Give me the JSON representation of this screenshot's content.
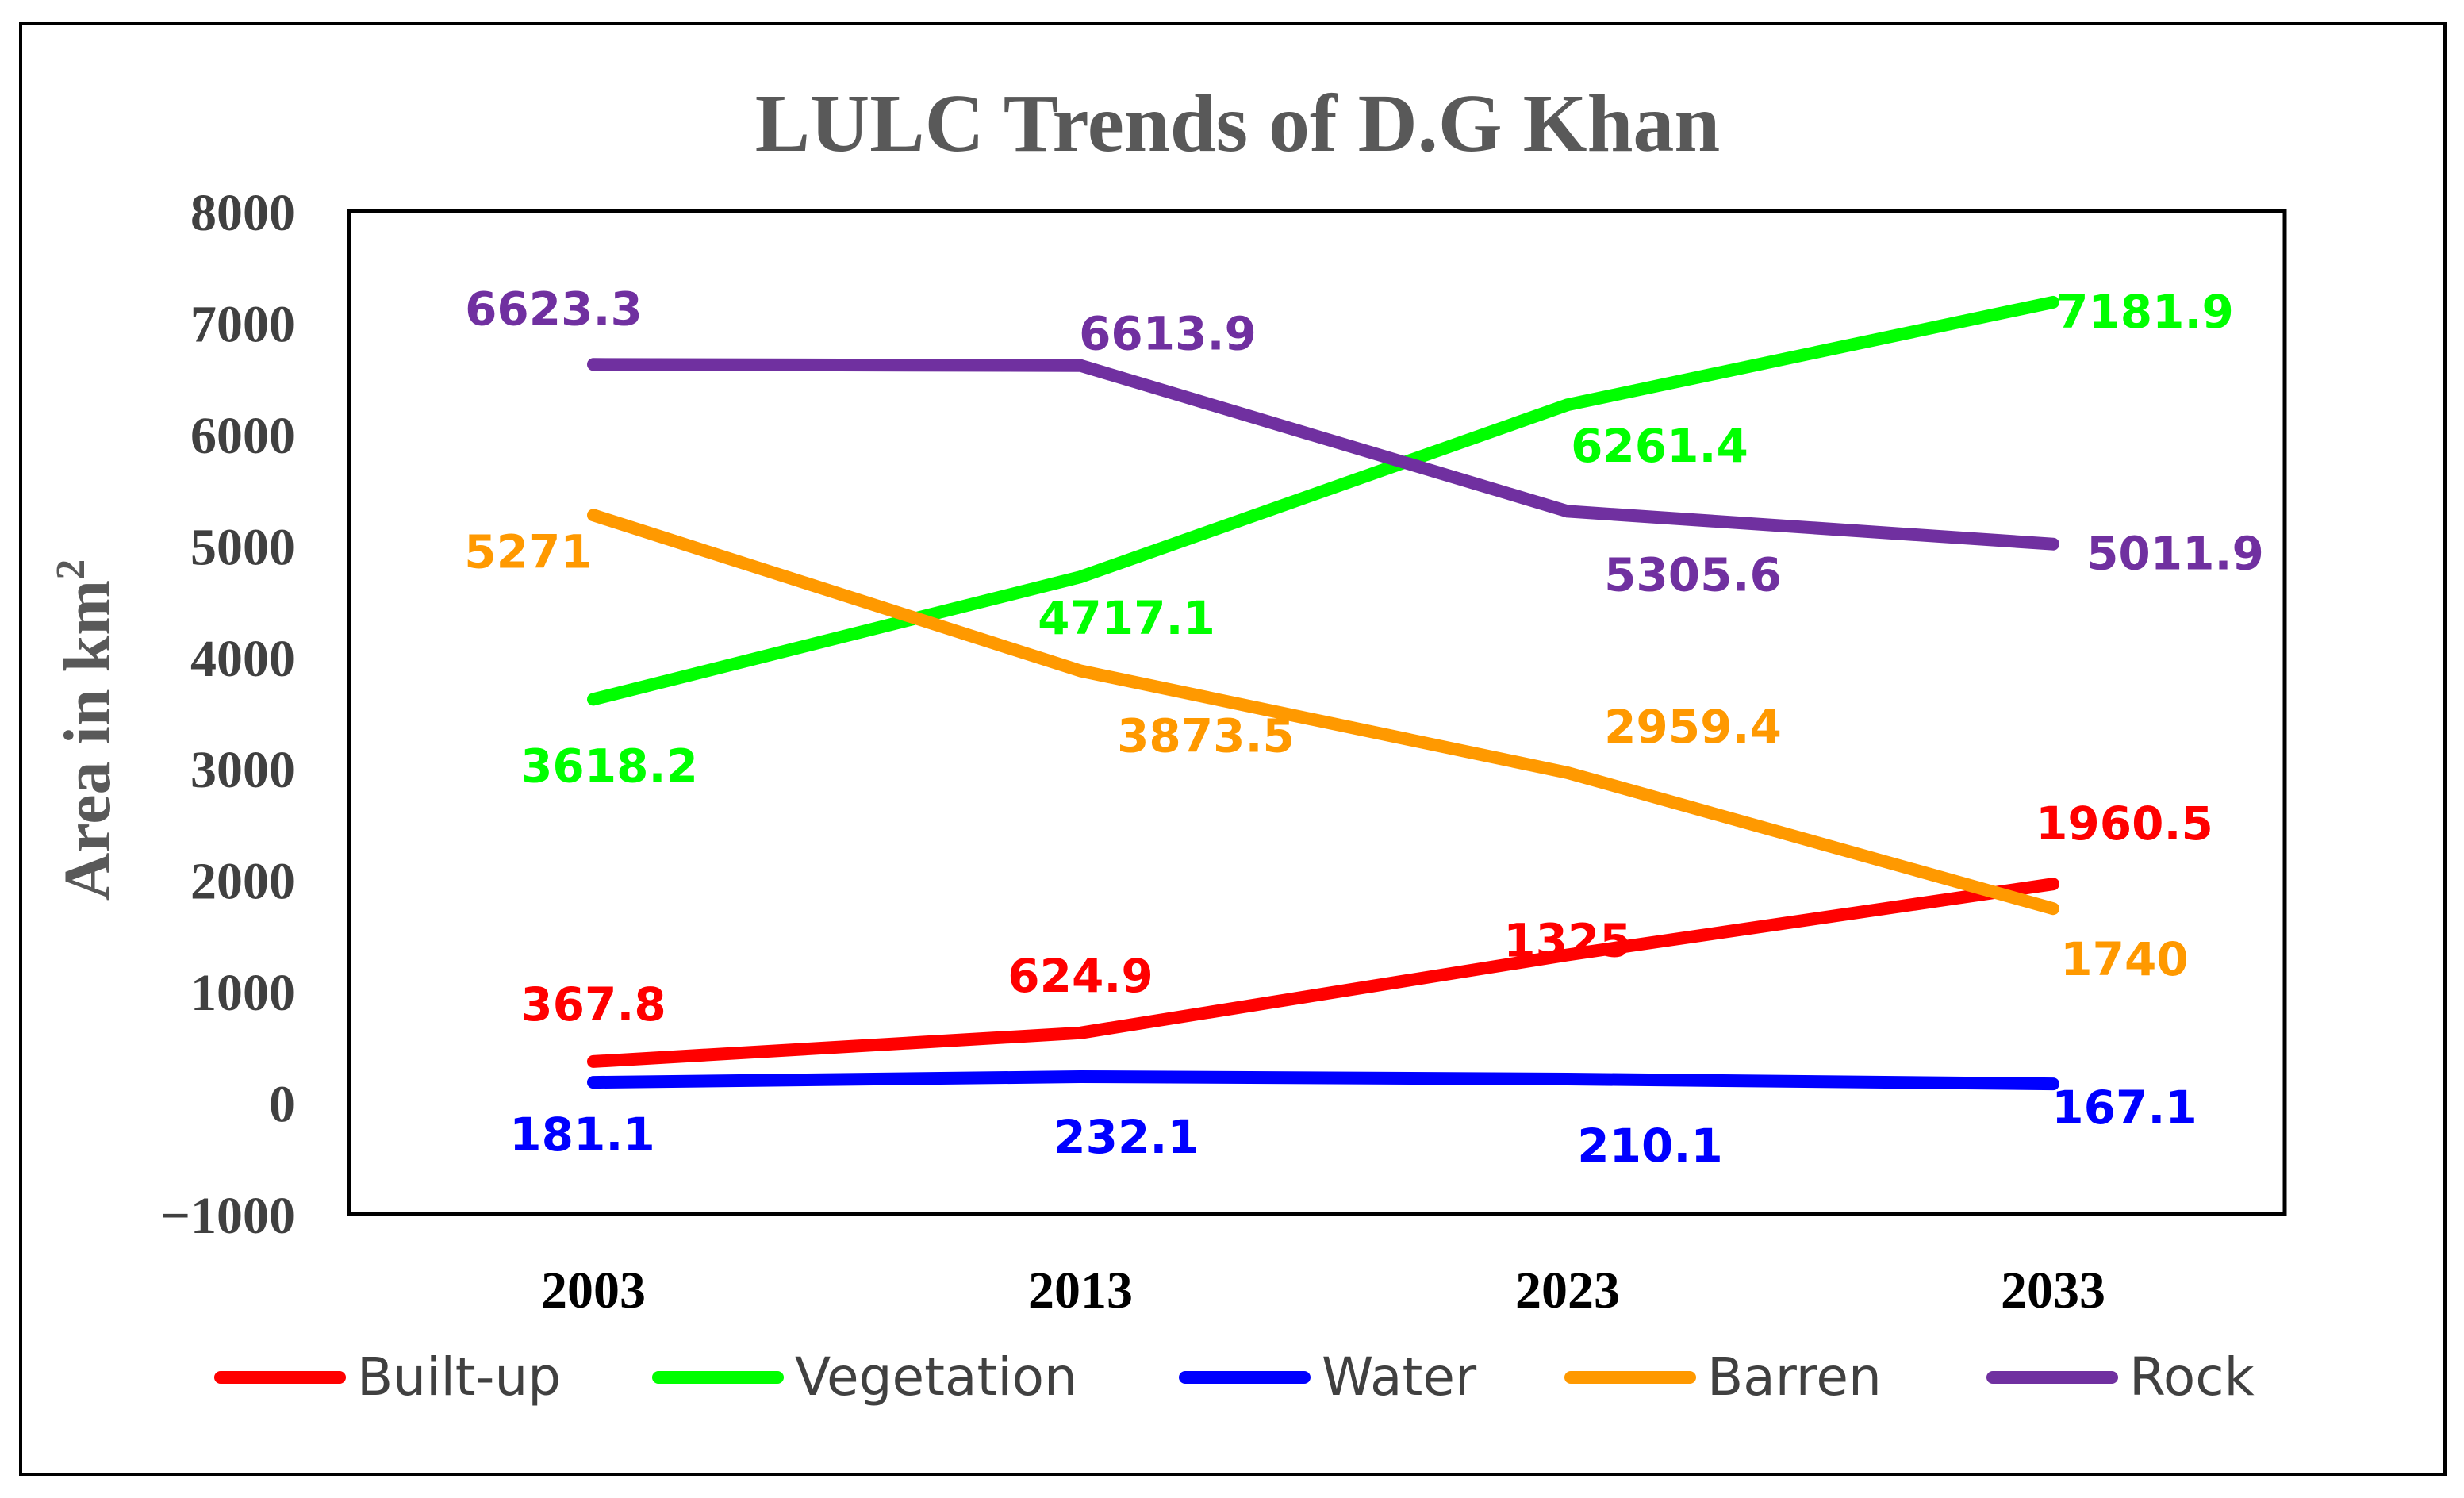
{
  "chart_data": {
    "type": "line",
    "title": "LULC Trends of D.G Khan",
    "ylabel": "Area in km",
    "ylabel_sup": "2",
    "xlabel": "",
    "categories": [
      "2003",
      "2013",
      "2023",
      "2033"
    ],
    "ylim": [
      -1000,
      8000
    ],
    "yticks": [
      8000,
      7000,
      6000,
      5000,
      4000,
      3000,
      2000,
      1000,
      0,
      -1000
    ],
    "ytick_labels": [
      "8000",
      "7000",
      "6000",
      "5000",
      "4000",
      "3000",
      "2000",
      "1000",
      "0",
      "−1000"
    ],
    "grid": false,
    "legend_position": "bottom",
    "series": [
      {
        "name": "Built-up",
        "color": "#ff0000",
        "values": [
          367.8,
          624.9,
          1325,
          1960.5
        ],
        "labels": [
          "367.8",
          "624.9",
          "1325",
          "1960.5"
        ]
      },
      {
        "name": "Vegetation",
        "color": "#00ff00",
        "values": [
          3618.2,
          4717.1,
          6261.4,
          7181.9
        ],
        "labels": [
          "3618.2",
          "4717.1",
          "6261.4",
          "7181.9"
        ]
      },
      {
        "name": "Water",
        "color": "#0000ff",
        "values": [
          181.1,
          232.1,
          210.1,
          167.1
        ],
        "labels": [
          "181.1",
          "232.1",
          "210.1",
          "167.1"
        ]
      },
      {
        "name": "Barren",
        "color": "#ff9900",
        "values": [
          5271,
          3873.5,
          2959.4,
          1740
        ],
        "labels": [
          "5271",
          "3873.5",
          "2959.4",
          "1740"
        ]
      },
      {
        "name": "Rock",
        "color": "#7030a0",
        "values": [
          6623.3,
          6613.9,
          5305.6,
          5011.9
        ],
        "labels": [
          "6623.3",
          "6613.9",
          "5305.6",
          "5011.9"
        ]
      }
    ],
    "colors": {
      "title": "#595959",
      "axis_title": "#595959",
      "tick": "#404040"
    }
  }
}
